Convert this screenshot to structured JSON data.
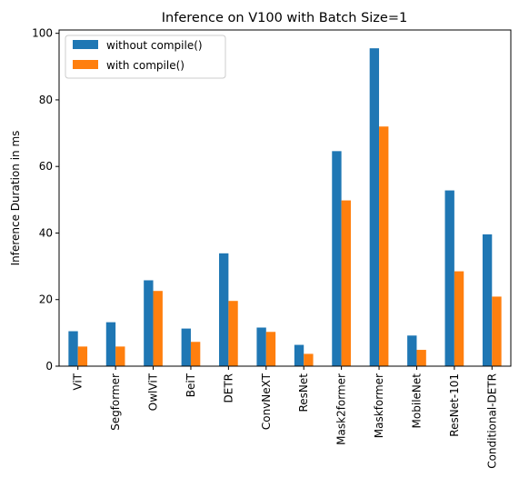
{
  "chart_data": {
    "type": "bar",
    "title": "Inference on V100 with Batch Size=1",
    "xlabel": "",
    "ylabel": "Inference Duration in ms",
    "ylim": [
      0,
      101
    ],
    "yticks": [
      0,
      20,
      40,
      60,
      80,
      100
    ],
    "grid": false,
    "legend_position": "top-left",
    "categories": [
      "ViT",
      "Segformer",
      "OwlViT",
      "BeiT",
      "DETR",
      "ConvNeXT",
      "ResNet",
      "Mask2former",
      "Maskformer",
      "MobileNet",
      "ResNet-101",
      "Conditional-DETR"
    ],
    "series": [
      {
        "name": "without compile()",
        "color": "#1f77b4",
        "values": [
          10.5,
          13.2,
          25.8,
          11.3,
          33.9,
          11.6,
          6.4,
          64.6,
          95.5,
          9.2,
          52.8,
          39.6
        ]
      },
      {
        "name": "with compile()",
        "color": "#ff7f0e",
        "values": [
          5.9,
          5.9,
          22.6,
          7.3,
          19.6,
          10.3,
          3.7,
          49.8,
          72.0,
          4.9,
          28.5,
          20.9
        ]
      }
    ]
  }
}
